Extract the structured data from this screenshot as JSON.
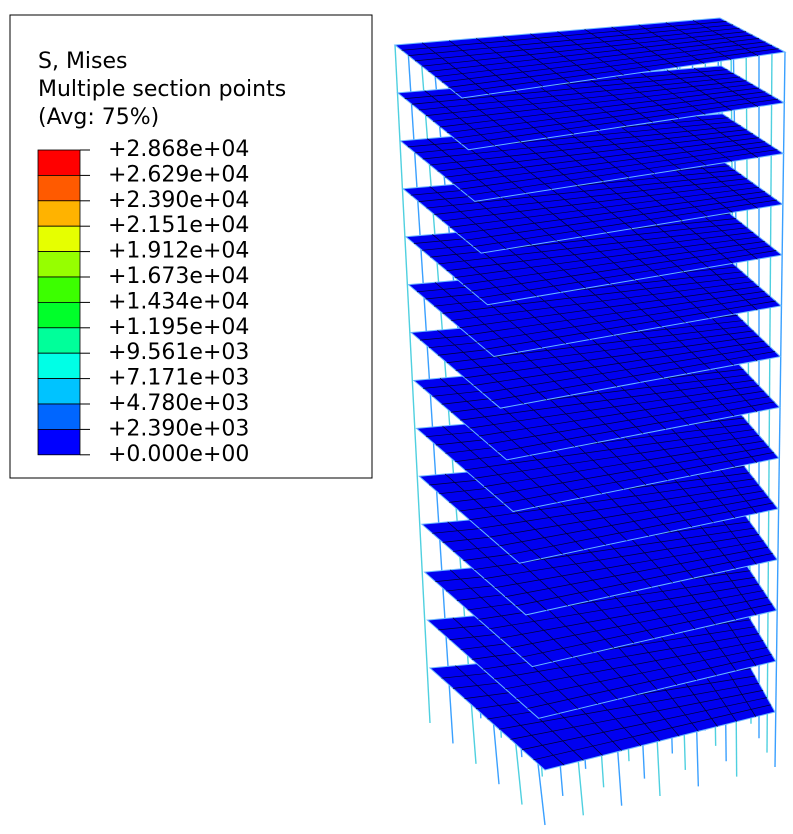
{
  "legend": {
    "title": "S, Mises",
    "subtitle": "Multiple section points",
    "averaging": "(Avg: 75%)",
    "levels": [
      "+2.868e+04",
      "+2.629e+04",
      "+2.390e+04",
      "+2.151e+04",
      "+1.912e+04",
      "+1.673e+04",
      "+1.434e+04",
      "+1.195e+04",
      "+9.561e+03",
      "+7.171e+03",
      "+4.780e+03",
      "+2.390e+03",
      "+0.000e+00"
    ],
    "colors": [
      "#ff0000",
      "#ff5a00",
      "#ffb300",
      "#e6ff00",
      "#96ff00",
      "#3cff00",
      "#00ff2a",
      "#00ff9a",
      "#00ffe6",
      "#00c3ff",
      "#0066ff",
      "#0000ff"
    ]
  }
}
